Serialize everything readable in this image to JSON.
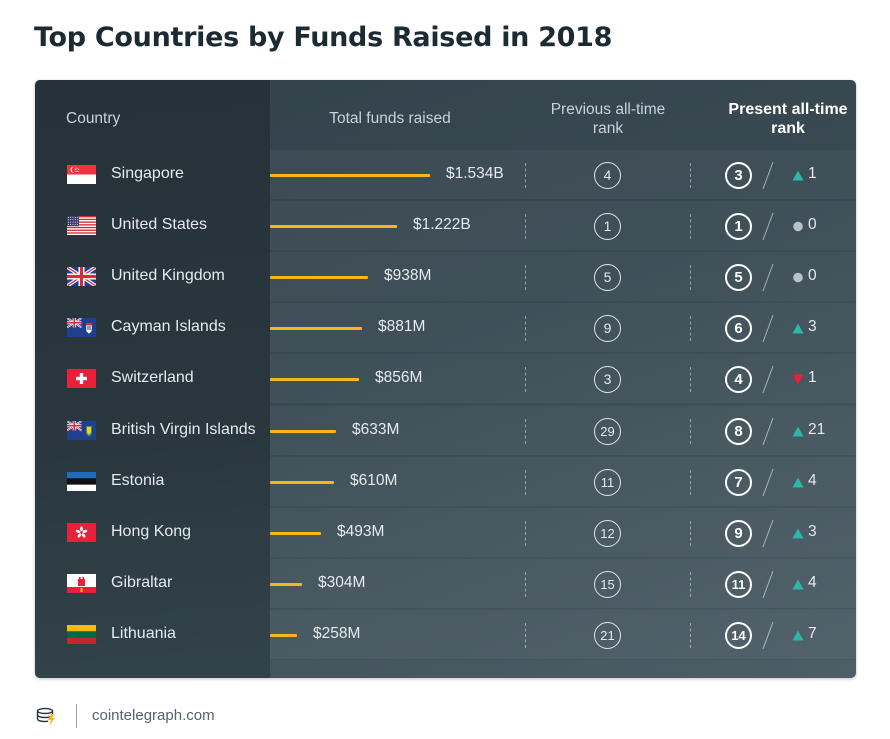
{
  "title": "Top Countries by Funds Raised in 2018",
  "headers": {
    "country": "Country",
    "funds": "Total funds raised",
    "prev_line1": "Previous all-time",
    "prev_line2": "rank",
    "present_line1": "Present all-time",
    "present_line2": "rank"
  },
  "colors": {
    "bar": "#f5b915",
    "up": "#2bb8a8",
    "down": "#e8203a",
    "neutral": "#b8c2c7"
  },
  "footer": {
    "source": "cointelegraph.com"
  },
  "chart_data": {
    "type": "table",
    "title": "Top Countries by Funds Raised in 2018",
    "columns": [
      "Country",
      "Total funds raised",
      "Previous all-time rank",
      "Present all-time rank"
    ],
    "rows": [
      {
        "country": "Singapore",
        "flag": "singapore",
        "funds_label": "$1.534B",
        "funds": 1534,
        "prev_rank": "4",
        "present_rank": "3",
        "change_dir": "up",
        "change": "1"
      },
      {
        "country": "United States",
        "flag": "united-states",
        "funds_label": "$1.222B",
        "funds": 1222,
        "prev_rank": "1",
        "present_rank": "1",
        "change_dir": "none",
        "change": "0"
      },
      {
        "country": "United Kingdom",
        "flag": "united-kingdom",
        "funds_label": "$938M",
        "funds": 938,
        "prev_rank": "5",
        "present_rank": "5",
        "change_dir": "none",
        "change": "0"
      },
      {
        "country": "Cayman Islands",
        "flag": "cayman-islands",
        "funds_label": "$881M",
        "funds": 881,
        "prev_rank": "9",
        "present_rank": "6",
        "change_dir": "up",
        "change": "3"
      },
      {
        "country": "Switzerland",
        "flag": "switzerland",
        "funds_label": "$856M",
        "funds": 856,
        "prev_rank": "3",
        "present_rank": "4",
        "change_dir": "down",
        "change": "1"
      },
      {
        "country": "British Virgin Islands",
        "flag": "british-virgin-islands",
        "funds_label": "$633M",
        "funds": 633,
        "prev_rank": "29",
        "present_rank": "8",
        "change_dir": "up",
        "change": "21"
      },
      {
        "country": "Estonia",
        "flag": "estonia",
        "funds_label": "$610M",
        "funds": 610,
        "prev_rank": "11",
        "present_rank": "7",
        "change_dir": "up",
        "change": "4"
      },
      {
        "country": "Hong Kong",
        "flag": "hong-kong",
        "funds_label": "$493M",
        "funds": 493,
        "prev_rank": "12",
        "present_rank": "9",
        "change_dir": "up",
        "change": "3"
      },
      {
        "country": "Gibraltar",
        "flag": "gibraltar",
        "funds_label": "$304M",
        "funds": 304,
        "prev_rank": "15",
        "present_rank": "11",
        "change_dir": "up",
        "change": "4"
      },
      {
        "country": "Lithuania",
        "flag": "lithuania",
        "funds_label": "$258M",
        "funds": 258,
        "prev_rank": "21",
        "present_rank": "14",
        "change_dir": "up",
        "change": "7"
      }
    ]
  }
}
